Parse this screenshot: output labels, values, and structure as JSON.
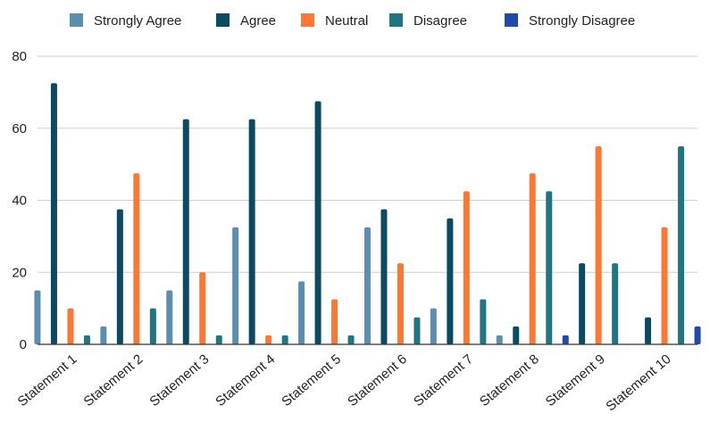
{
  "chart_data": {
    "type": "bar",
    "title": "",
    "xlabel": "",
    "ylabel": "",
    "ylim": [
      0,
      80
    ],
    "yticks": [
      0,
      20,
      40,
      60,
      80
    ],
    "grid": true,
    "legend_position": "top",
    "categories": [
      "Statement 1",
      "Statement 2",
      "Statement 3",
      "Statement 4",
      "Statement 5",
      "Statement 6",
      "Statement 7",
      "Statement 8",
      "Statement 9",
      "Statement 10"
    ],
    "series": [
      {
        "name": "Strongly Agree",
        "color": "#5b8fb0",
        "values": [
          15,
          5,
          15,
          32.5,
          17.5,
          32.5,
          10,
          2.5,
          0,
          0
        ]
      },
      {
        "name": "Agree",
        "color": "#0a4a63",
        "values": [
          72.5,
          37.5,
          62.5,
          62.5,
          67.5,
          37.5,
          35,
          5,
          22.5,
          7.5
        ]
      },
      {
        "name": "Neutral",
        "color": "#ff7733",
        "values": [
          10,
          47.5,
          20,
          2.5,
          12.5,
          22.5,
          42.5,
          47.5,
          55,
          32.5
        ]
      },
      {
        "name": "Disagree",
        "color": "#1f7582",
        "values": [
          2.5,
          10,
          2.5,
          2.5,
          2.5,
          7.5,
          12.5,
          42.5,
          22.5,
          55
        ]
      },
      {
        "name": "Strongly Disagree",
        "color": "#1f4aa8",
        "values": [
          0,
          0,
          0,
          0,
          0,
          0,
          0,
          2.5,
          0,
          5
        ]
      }
    ]
  }
}
